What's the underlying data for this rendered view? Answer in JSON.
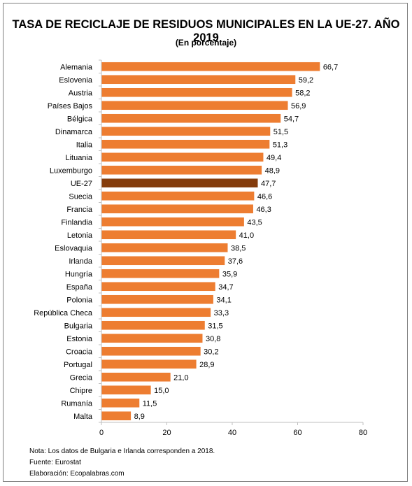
{
  "title": "TASA DE RECICLAJE DE RESIDUOS MUNICIPALES EN LA UE-27. AÑO 2019",
  "subtitle": "(En porcentaje)",
  "chart_data": {
    "type": "bar",
    "orientation": "horizontal",
    "categories": [
      "Alemania",
      "Eslovenia",
      "Austria",
      "Países Bajos",
      "Bélgica",
      "Dinamarca",
      "Italia",
      "Lituania",
      "Luxemburgo",
      "UE-27",
      "Suecia",
      "Francia",
      "Finlandia",
      "Letonia",
      "Eslovaquia",
      "Irlanda",
      "Hungría",
      "España",
      "Polonia",
      "República Checa",
      "Bulgaria",
      "Estonia",
      "Croacia",
      "Portugal",
      "Grecia",
      "Chipre",
      "Rumanía",
      "Malta"
    ],
    "values": [
      66.7,
      59.2,
      58.2,
      56.9,
      54.7,
      51.5,
      51.3,
      49.4,
      48.9,
      47.7,
      46.6,
      46.3,
      43.5,
      41.0,
      38.5,
      37.6,
      35.9,
      34.7,
      34.1,
      33.3,
      31.5,
      30.8,
      30.2,
      28.9,
      21.0,
      15.0,
      11.5,
      8.9
    ],
    "value_labels": [
      "66,7",
      "59,2",
      "58,2",
      "56,9",
      "54,7",
      "51,5",
      "51,3",
      "49,4",
      "48,9",
      "47,7",
      "46,6",
      "46,3",
      "43,5",
      "41,0",
      "38,5",
      "37,6",
      "35,9",
      "34,7",
      "34,1",
      "33,3",
      "31,5",
      "30,8",
      "30,2",
      "28,9",
      "21,0",
      "15,0",
      "11,5",
      "8,9"
    ],
    "xlim": [
      0,
      80
    ],
    "xticks": [
      "0",
      "20",
      "40",
      "60",
      "80"
    ],
    "highlight_category": "UE-27",
    "colors": {
      "bar": "#ED7D31",
      "highlight": "#843C0C",
      "axis": "#BFBFBF"
    },
    "grid": false,
    "legend": "none"
  },
  "notes": {
    "note": "Nota: Los datos  de Bulgaria e Irlanda corresponden a 2018.",
    "source": "Fuente: Eurostat",
    "elaboration": "Elaboración: Ecopalabras.com"
  }
}
